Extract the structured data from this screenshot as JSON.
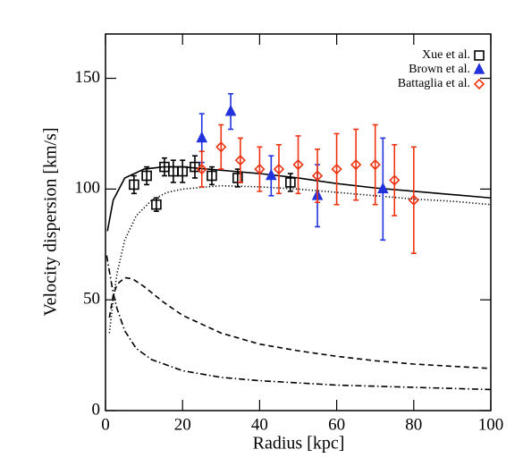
{
  "chart_data": {
    "type": "scatter",
    "x_label": "Radius [kpc]",
    "y_label": "Velocity dispersion [km/s]",
    "xlim": [
      0,
      100
    ],
    "ylim": [
      0,
      170
    ],
    "xticks": [
      0,
      20,
      40,
      60,
      80,
      100
    ],
    "yticks": [
      0,
      50,
      100,
      150
    ],
    "legend": "upper right",
    "series": [
      {
        "name": "Xue et al.",
        "color": "#000000",
        "marker": "square",
        "x": [
          7.4,
          10.7,
          13.2,
          15.3,
          17.6,
          20,
          23.2,
          27.6,
          34.3,
          48
        ],
        "values": [
          102,
          106,
          93,
          110,
          108,
          108,
          110,
          106,
          105,
          103
        ],
        "errors": [
          4,
          4,
          3,
          4,
          5,
          5,
          5,
          4,
          4,
          4
        ]
      },
      {
        "name": "Brown et al.",
        "color": "#2233dd",
        "marker": "triangle",
        "x": [
          25,
          32.5,
          43,
          55,
          72
        ],
        "values": [
          123,
          135,
          106,
          97,
          100
        ],
        "errors": [
          11,
          8,
          9,
          14,
          23
        ]
      },
      {
        "name": "Battaglia et al.",
        "color": "#ee3311",
        "marker": "diamond",
        "x": [
          25,
          30,
          35,
          40,
          45,
          50,
          55,
          60,
          65,
          70,
          75,
          80
        ],
        "values": [
          109,
          119,
          113,
          109,
          109,
          111,
          106,
          109,
          111,
          111,
          104,
          95
        ],
        "errors": [
          8,
          10,
          10,
          10,
          11,
          13,
          12,
          16,
          16,
          18,
          16,
          24
        ]
      }
    ],
    "lines": [
      {
        "style": "solid",
        "x": [
          0.5,
          2,
          5,
          10,
          15,
          20,
          30,
          40,
          50,
          60,
          70,
          80,
          90,
          100
        ],
        "values": [
          81,
          95,
          105,
          109,
          110,
          110,
          108.5,
          107,
          105,
          102.5,
          100.5,
          99,
          97.5,
          96
        ]
      },
      {
        "style": "dotted",
        "x": [
          1,
          2,
          3,
          5,
          8,
          12,
          16,
          20,
          30,
          40,
          50,
          60,
          70,
          80,
          90,
          100
        ],
        "values": [
          35,
          50,
          62,
          77,
          88,
          95,
          98.5,
          100,
          101.5,
          101,
          100,
          98.5,
          97,
          95.5,
          94.5,
          93
        ]
      },
      {
        "style": "dashed",
        "x": [
          1,
          2,
          3,
          5,
          7,
          10,
          15,
          20,
          30,
          40,
          50,
          60,
          70,
          80,
          90,
          100
        ],
        "values": [
          42,
          52,
          57,
          60,
          59.5,
          56,
          49,
          43,
          35,
          30,
          27,
          24.5,
          22.5,
          21,
          20,
          19
        ]
      },
      {
        "style": "dashdot",
        "x": [
          0.3,
          1,
          2,
          3,
          5,
          8,
          12,
          20,
          30,
          40,
          50,
          60,
          70,
          80,
          90,
          100
        ],
        "values": [
          70,
          63,
          53,
          46,
          36,
          28,
          23,
          18,
          15,
          13.5,
          12.5,
          11.5,
          11,
          10.5,
          10,
          9.5
        ]
      }
    ]
  }
}
